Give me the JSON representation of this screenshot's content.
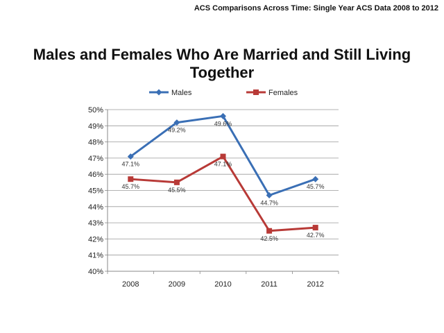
{
  "header": {
    "note": "ACS Comparisons Across Time: Single Year ACS Data 2008 to 2012"
  },
  "chart_data": {
    "type": "line",
    "title": "Males and Females Who Are Married and Still Living Together",
    "xlabel": "",
    "ylabel": "",
    "categories": [
      "2008",
      "2009",
      "2010",
      "2011",
      "2012"
    ],
    "ylim": [
      40,
      50
    ],
    "yticks": [
      "40%",
      "41%",
      "42%",
      "43%",
      "44%",
      "45%",
      "46%",
      "47%",
      "48%",
      "49%",
      "50%"
    ],
    "grid": true,
    "legend_position": "top",
    "series": [
      {
        "name": "Males",
        "color": "#3a6fb5",
        "marker": "diamond",
        "values": [
          47.1,
          49.2,
          49.6,
          44.7,
          45.7
        ],
        "labels": [
          "47.1%",
          "49.2%",
          "49.6%",
          "44.7%",
          "45.7%"
        ]
      },
      {
        "name": "Females",
        "color": "#b83a37",
        "marker": "square",
        "values": [
          45.7,
          45.5,
          47.1,
          42.5,
          42.7
        ],
        "labels": [
          "45.7%",
          "45.5%",
          "47.1%",
          "42.5%",
          "42.7%"
        ]
      }
    ]
  }
}
